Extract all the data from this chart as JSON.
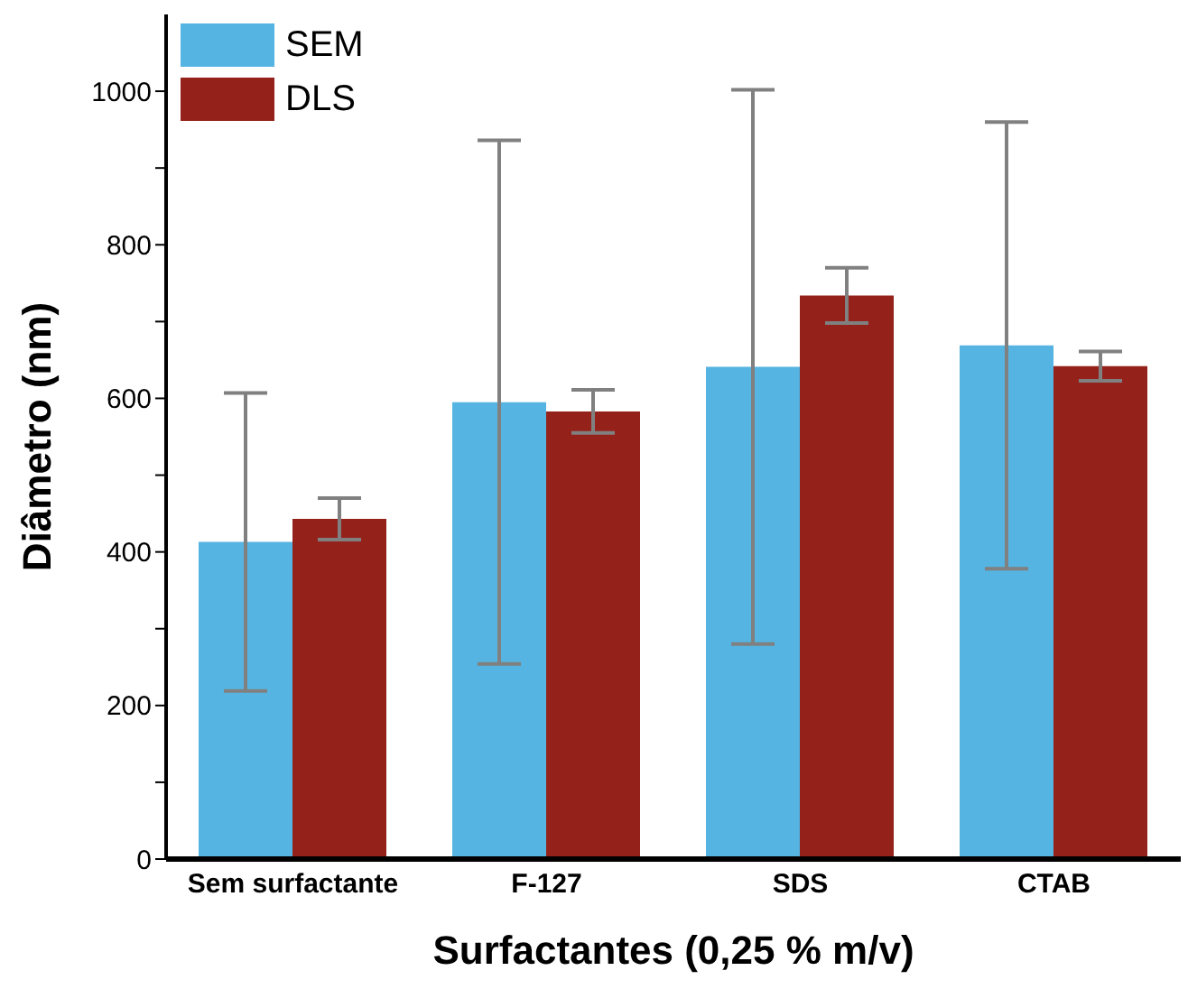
{
  "chart_data": {
    "type": "bar",
    "xlabel": "Surfactantes (0,25 % m/v)",
    "ylabel": "Diâmetro (nm)",
    "categories": [
      "Sem surfactante",
      "F-127",
      "SDS",
      "CTAB"
    ],
    "series": [
      {
        "name": "SEM",
        "color": "#55b4e1",
        "values": [
          413,
          595,
          641,
          669
        ],
        "errors": [
          194,
          341,
          361,
          291
        ]
      },
      {
        "name": "DLS",
        "color": "#94221b",
        "values": [
          443,
          583,
          734,
          642
        ],
        "errors": [
          27,
          28,
          36,
          19
        ]
      }
    ],
    "ylim": [
      0,
      1100
    ],
    "yticks": [
      0,
      {
        "value": 100,
        "label": null
      },
      200,
      {
        "value": 300,
        "label": null
      },
      400,
      {
        "value": 500,
        "label": null
      },
      600,
      {
        "value": 700,
        "label": null
      },
      800,
      {
        "value": 900,
        "label": null
      },
      1000
    ],
    "grid": false,
    "legend": "top left"
  }
}
